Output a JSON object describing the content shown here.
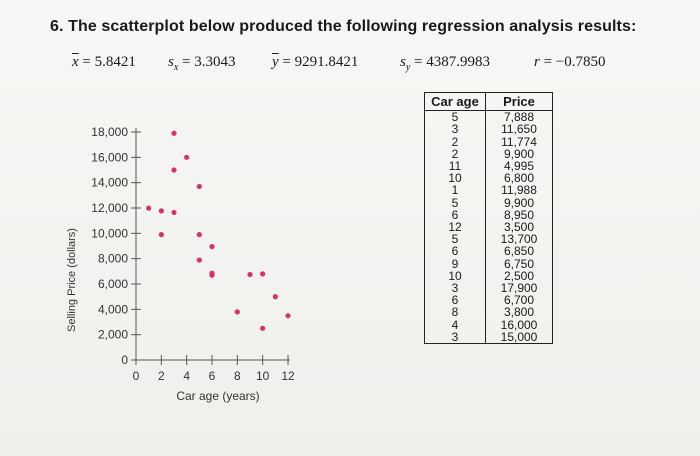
{
  "question": {
    "number": "6.",
    "text": "The scatterplot below produced the following regression analysis results:"
  },
  "stats": {
    "xbar": {
      "sym": "x",
      "value": "= 5.8421"
    },
    "sx": {
      "sym": "s",
      "sub": "x",
      "value": "= 3.3043"
    },
    "ybar": {
      "sym": "y",
      "value": "= 9291.8421"
    },
    "sy": {
      "sym": "s",
      "sub": "y",
      "value": "= 4387.9983"
    },
    "r": {
      "sym": "r",
      "value": "= −0.7850"
    }
  },
  "chart_data": {
    "type": "scatter",
    "xlabel": "Car age (years)",
    "ylabel": "Selling Price (dollars)",
    "xlim": [
      0,
      12
    ],
    "ylim": [
      0,
      18000
    ],
    "x_ticks": [
      0,
      2,
      4,
      6,
      8,
      10,
      12
    ],
    "y_ticks": [
      0,
      2000,
      4000,
      6000,
      8000,
      10000,
      12000,
      14000,
      16000,
      18000
    ],
    "y_tick_labels": [
      "0",
      "2,000",
      "4,000",
      "6,000",
      "8,000",
      "10,000",
      "12,000",
      "14,000",
      "16,000",
      "18,000"
    ],
    "point_color": "#d6336c",
    "points": [
      {
        "x": 5,
        "y": 7888
      },
      {
        "x": 3,
        "y": 11650
      },
      {
        "x": 2,
        "y": 11774
      },
      {
        "x": 2,
        "y": 9900
      },
      {
        "x": 11,
        "y": 4995
      },
      {
        "x": 10,
        "y": 6800
      },
      {
        "x": 1,
        "y": 11988
      },
      {
        "x": 5,
        "y": 9900
      },
      {
        "x": 6,
        "y": 8950
      },
      {
        "x": 12,
        "y": 3500
      },
      {
        "x": 5,
        "y": 13700
      },
      {
        "x": 6,
        "y": 6850
      },
      {
        "x": 9,
        "y": 6750
      },
      {
        "x": 10,
        "y": 2500
      },
      {
        "x": 3,
        "y": 17900
      },
      {
        "x": 6,
        "y": 6700
      },
      {
        "x": 8,
        "y": 3800
      },
      {
        "x": 4,
        "y": 16000
      },
      {
        "x": 3,
        "y": 15000
      }
    ]
  },
  "table": {
    "headers": [
      "Car age",
      "Price"
    ],
    "ages": [
      "5",
      "3",
      "2",
      "2",
      "11",
      "10",
      "1",
      "5",
      "6",
      "12",
      "5",
      "6",
      "9",
      "10",
      "3",
      "6",
      "8",
      "4",
      "3"
    ],
    "prices": [
      "7,888",
      "11,650",
      "11,774",
      "9,900",
      "4,995",
      "6,800",
      "11,988",
      "9,900",
      "8,950",
      "3,500",
      "13,700",
      "6,850",
      "6,750",
      "2,500",
      "17,900",
      "6,700",
      "3,800",
      "16,000",
      "15,000"
    ]
  }
}
